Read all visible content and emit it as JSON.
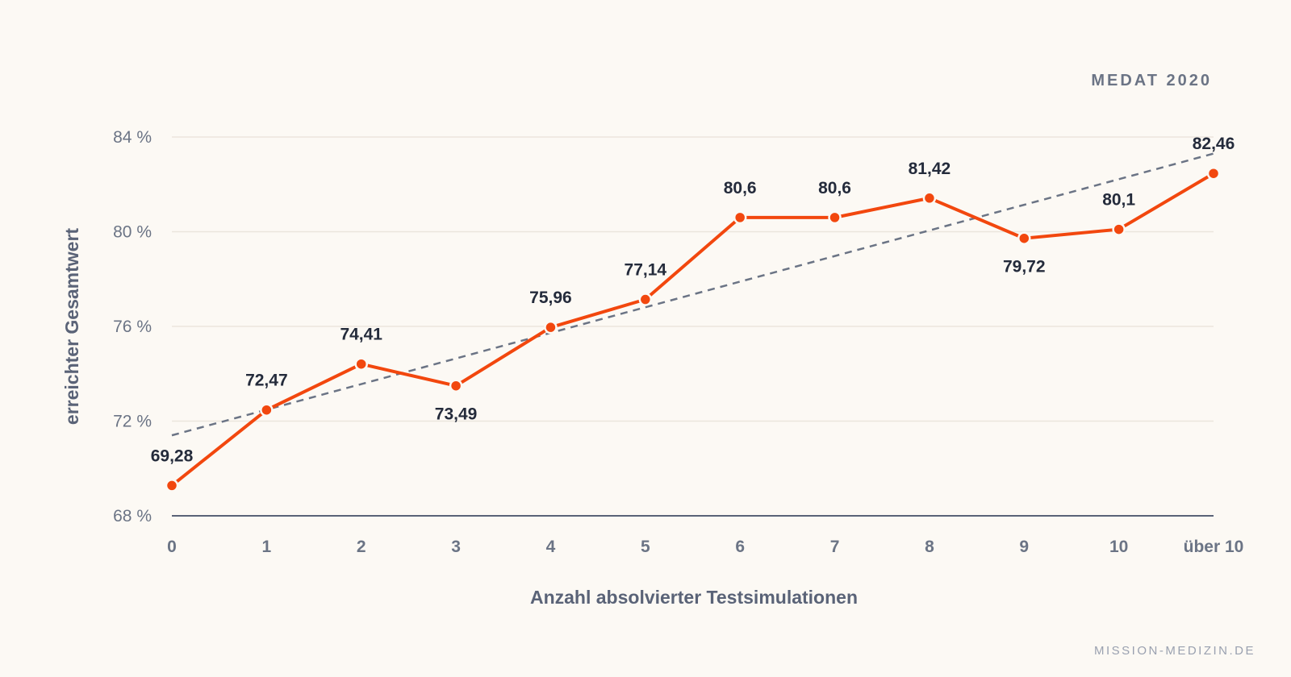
{
  "chart_data": {
    "type": "line",
    "badge": "MEDAT 2020",
    "watermark": "MISSION-MEDIZIN.DE",
    "xlabel": "Anzahl absolvierter Testsimulationen",
    "ylabel": "erreichter Gesamtwert",
    "categories": [
      "0",
      "1",
      "2",
      "3",
      "4",
      "5",
      "6",
      "7",
      "8",
      "9",
      "10",
      "über 10"
    ],
    "ylim": [
      68,
      84
    ],
    "yticks": [
      68,
      72,
      76,
      80,
      84
    ],
    "ytick_suffix": " %",
    "grid": true,
    "series": [
      {
        "values": [
          69.28,
          72.47,
          74.41,
          73.49,
          75.96,
          77.14,
          80.6,
          80.6,
          81.42,
          79.72,
          80.1,
          82.46
        ],
        "data_labels": [
          "69,28",
          "72,47",
          "74,41",
          "73,49",
          "75,96",
          "77,14",
          "80,6",
          "80,6",
          "81,42",
          "79,72",
          "80,1",
          "82,46"
        ],
        "label_positions": [
          "above",
          "above",
          "above",
          "below",
          "above",
          "above",
          "above",
          "above",
          "above",
          "below",
          "above",
          "above"
        ],
        "color": "#f2470e"
      }
    ],
    "trendline": {
      "style": "dashed",
      "color": "#6b7485",
      "start": 71.4,
      "end": 83.3
    }
  }
}
